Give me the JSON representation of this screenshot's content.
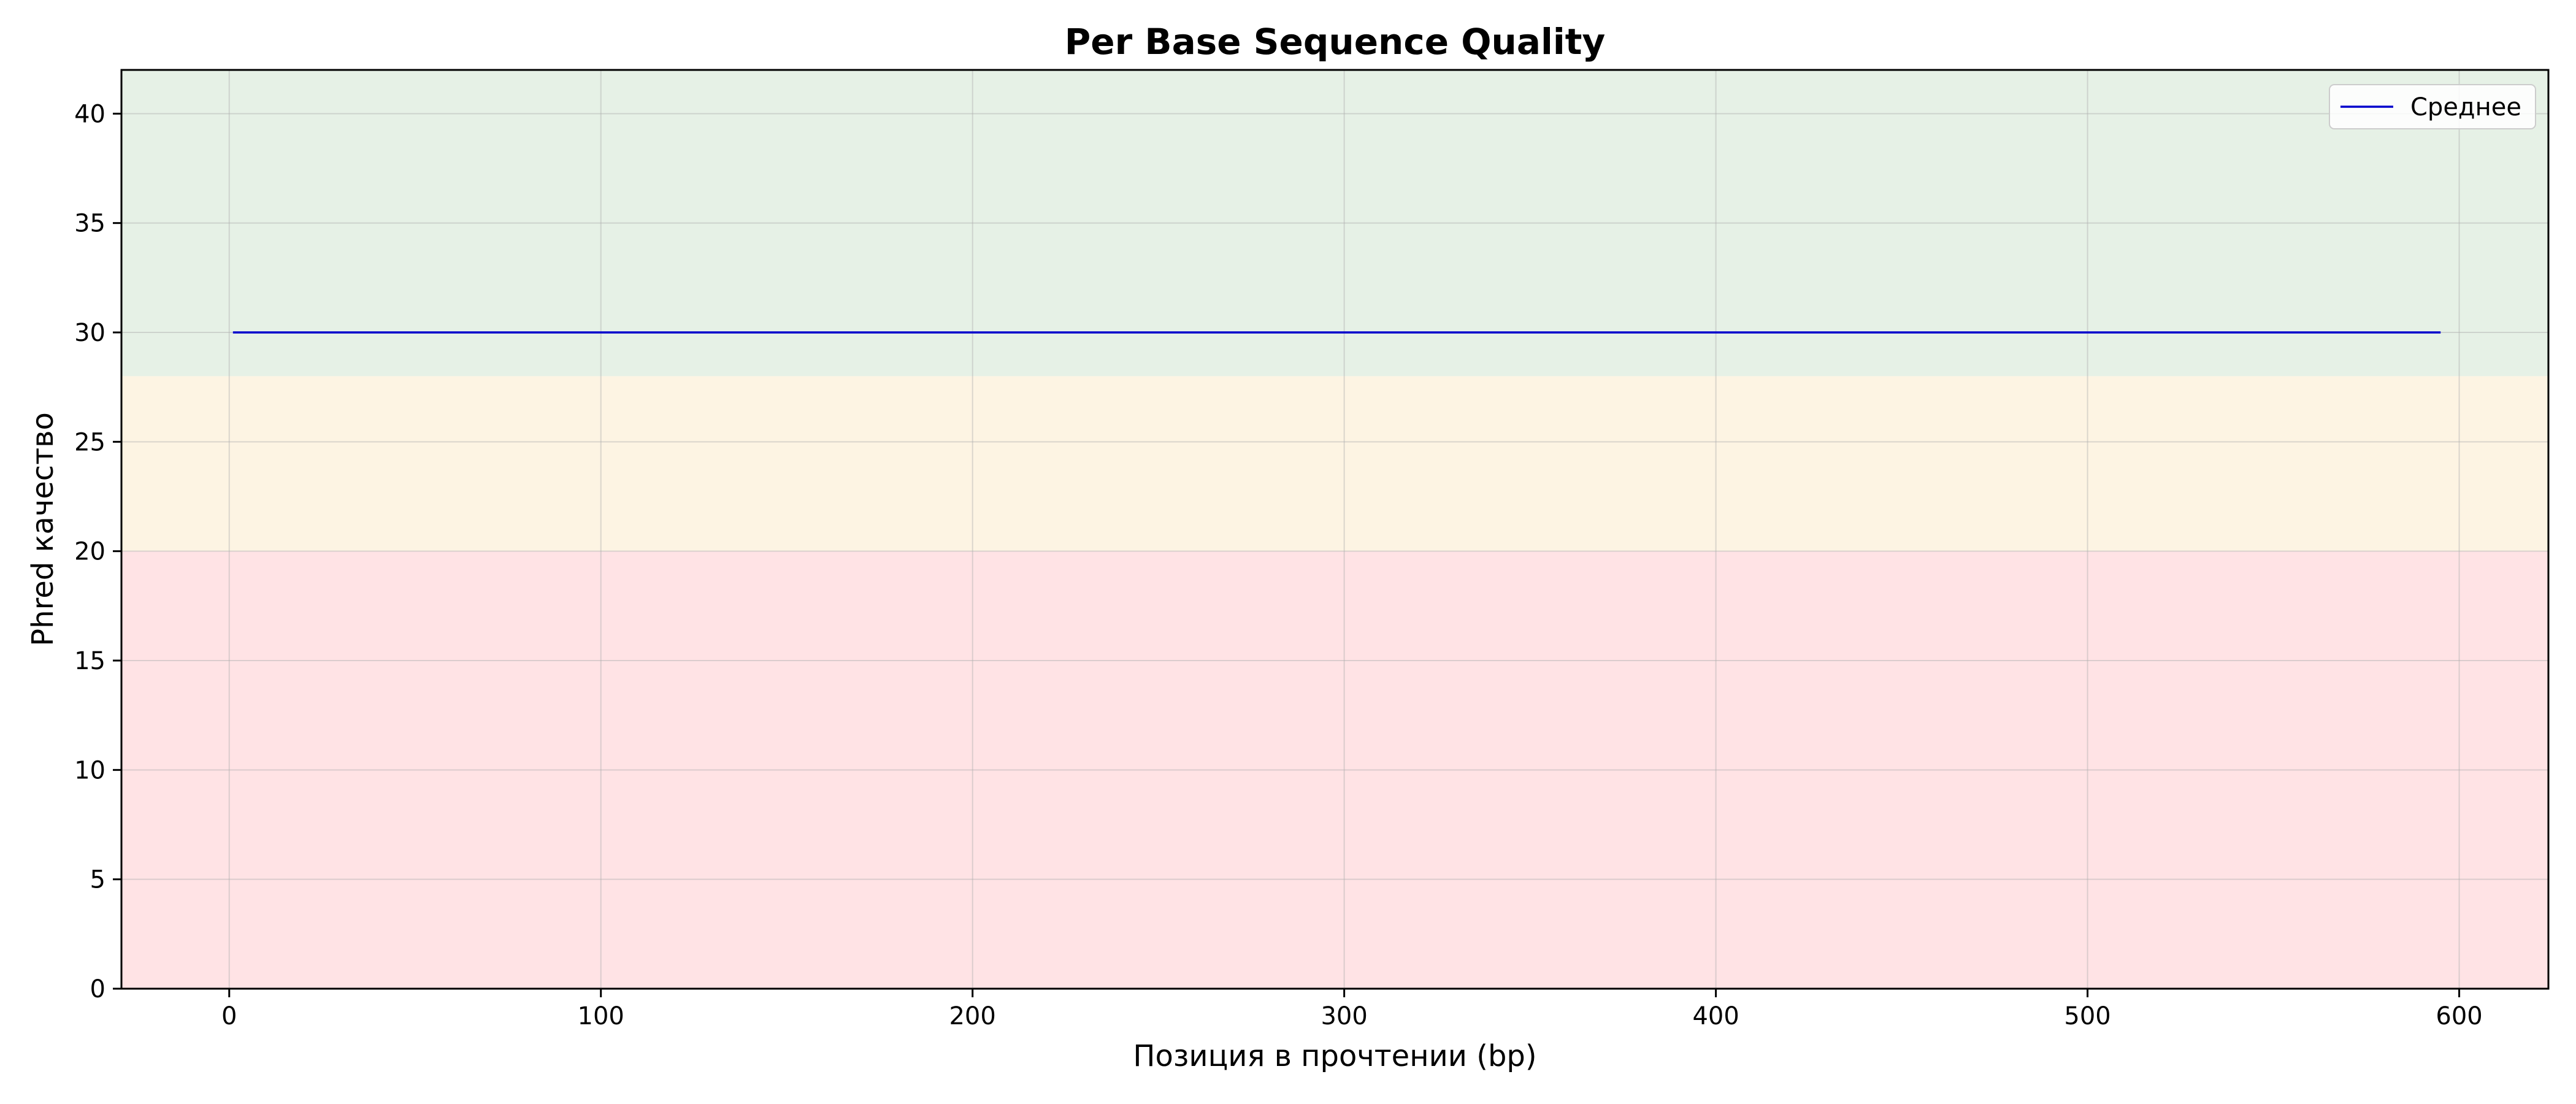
{
  "chart_data": {
    "type": "line",
    "title": "Per Base Sequence Quality",
    "xlabel": "Позиция в прочтении (bp)",
    "ylabel": "Phred качество",
    "xlim": [
      -29,
      624
    ],
    "ylim": [
      0,
      42
    ],
    "xticks": [
      0,
      100,
      200,
      300,
      400,
      500,
      600
    ],
    "yticks": [
      0,
      5,
      10,
      15,
      20,
      25,
      30,
      35,
      40
    ],
    "grid": true,
    "legend_position": "top-right",
    "quality_zones": [
      {
        "from": 0,
        "to": 20,
        "color": "#ffe3e5"
      },
      {
        "from": 20,
        "to": 28,
        "color": "#fdf4e3"
      },
      {
        "from": 28,
        "to": 42,
        "color": "#e6f1e6"
      }
    ],
    "series": [
      {
        "name": "Среднее",
        "color": "#0000cc",
        "x": [
          1,
          595
        ],
        "y": [
          30,
          30
        ]
      }
    ]
  }
}
